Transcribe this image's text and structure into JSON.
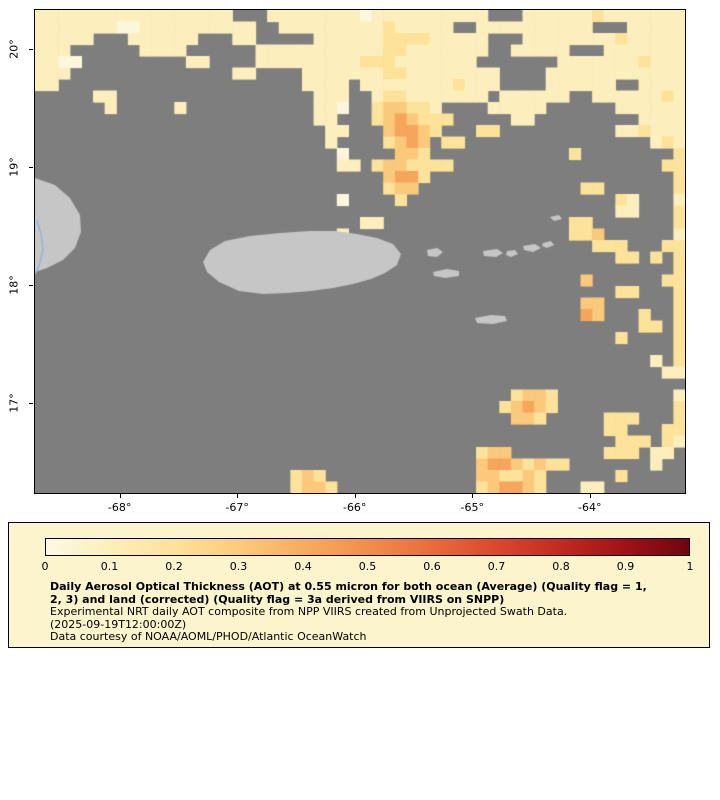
{
  "page": {
    "background": "#ffffff"
  },
  "map": {
    "background_color": "#7E7E7E",
    "land_color": "#C6C6C6",
    "border_color": "#000000",
    "coastline_color": "#8FB8D8",
    "lat_ticks": [
      {
        "value": 20,
        "label": "20°"
      },
      {
        "value": 19,
        "label": "19°"
      },
      {
        "value": 18,
        "label": "18°"
      },
      {
        "value": 17,
        "label": "17°"
      }
    ],
    "lon_ticks": [
      {
        "value": -68,
        "label": "-68°"
      },
      {
        "value": -67,
        "label": "-67°"
      },
      {
        "value": -66,
        "label": "-66°"
      },
      {
        "value": -65,
        "label": "-65°"
      },
      {
        "value": -64,
        "label": "-64°"
      }
    ],
    "coastline": [
      [
        2,
        210
      ],
      [
        6,
        224
      ],
      [
        8,
        240
      ],
      [
        4,
        256
      ],
      [
        0,
        264
      ]
    ],
    "land": [
      {
        "name": "puerto-rico",
        "points": [
          [
            168,
            252
          ],
          [
            175,
            240
          ],
          [
            190,
            231
          ],
          [
            215,
            226
          ],
          [
            245,
            223
          ],
          [
            275,
            221
          ],
          [
            300,
            221
          ],
          [
            322,
            224
          ],
          [
            342,
            228
          ],
          [
            358,
            234
          ],
          [
            366,
            244
          ],
          [
            362,
            255
          ],
          [
            350,
            263
          ],
          [
            336,
            269
          ],
          [
            318,
            274
          ],
          [
            298,
            278
          ],
          [
            276,
            281
          ],
          [
            252,
            283
          ],
          [
            228,
            284
          ],
          [
            204,
            281
          ],
          [
            184,
            272
          ],
          [
            172,
            262
          ]
        ]
      },
      {
        "name": "hispaniola-east-tip",
        "points": [
          [
            0,
            168
          ],
          [
            20,
            175
          ],
          [
            35,
            188
          ],
          [
            45,
            205
          ],
          [
            46,
            222
          ],
          [
            40,
            238
          ],
          [
            28,
            250
          ],
          [
            12,
            258
          ],
          [
            0,
            262
          ]
        ]
      },
      {
        "name": "culebra",
        "points": [
          [
            392,
            240
          ],
          [
            402,
            238
          ],
          [
            408,
            242
          ],
          [
            402,
            247
          ],
          [
            393,
            246
          ]
        ]
      },
      {
        "name": "vieques",
        "points": [
          [
            398,
            262
          ],
          [
            412,
            259
          ],
          [
            424,
            261
          ],
          [
            424,
            266
          ],
          [
            410,
            268
          ],
          [
            399,
            266
          ]
        ]
      },
      {
        "name": "st-thomas",
        "points": [
          [
            448,
            241
          ],
          [
            462,
            239
          ],
          [
            468,
            243
          ],
          [
            461,
            247
          ],
          [
            449,
            246
          ]
        ]
      },
      {
        "name": "st-john",
        "points": [
          [
            472,
            241
          ],
          [
            480,
            240
          ],
          [
            483,
            244
          ],
          [
            476,
            247
          ],
          [
            471,
            245
          ]
        ]
      },
      {
        "name": "tortola",
        "points": [
          [
            488,
            236
          ],
          [
            500,
            234
          ],
          [
            506,
            238
          ],
          [
            498,
            242
          ],
          [
            489,
            240
          ]
        ]
      },
      {
        "name": "virgin-gorda",
        "points": [
          [
            508,
            233
          ],
          [
            516,
            231
          ],
          [
            519,
            235
          ],
          [
            512,
            238
          ],
          [
            507,
            236
          ]
        ]
      },
      {
        "name": "anegada",
        "points": [
          [
            515,
            207
          ],
          [
            524,
            205
          ],
          [
            527,
            209
          ],
          [
            519,
            211
          ]
        ]
      },
      {
        "name": "st-croix",
        "points": [
          [
            440,
            308
          ],
          [
            456,
            305
          ],
          [
            470,
            306
          ],
          [
            472,
            311
          ],
          [
            458,
            314
          ],
          [
            442,
            313
          ]
        ]
      }
    ]
  },
  "chart_data": {
    "type": "heatmap",
    "title": "Daily Aerosol Optical Thickness (AOT) at 0.55 micron",
    "lon_range": [
      -68.72,
      -63.19
    ],
    "lat_range": [
      16.24,
      20.33
    ],
    "lon_tick_values": [
      -68,
      -67,
      -66,
      -65,
      -64
    ],
    "lat_tick_values": [
      20,
      19,
      18,
      17
    ],
    "no_data": "gray pixels = no data / cloud",
    "palette": {
      "a": "#FCF6DC",
      "b": "#FDEFBD",
      "c": "#FDE29A",
      "d": "#FBC97B",
      "e": "#F6A55C",
      "f": "#EF8243"
    },
    "palette_aot_values": {
      "a": 0.03,
      "b": 0.08,
      "c": 0.15,
      "d": 0.25,
      "e": 0.35,
      "f": 0.45
    },
    "grid_cols": 56,
    "grid_rows": [
      "bbbbbbbbbbbbbbbbb...bbbbbbbbabbbbbbbbbb...bbbbbbcbbbbbbb",
      "bbbbbbbaabbbbbbbbbb..bbbbbbbbbcbbbbb..bbbbbbbbbb...bbbbb",
      "bbbbb...bbbbbb...bb.....bbbbbbccccbbbbb...bbbbbbbbcbbbbb",
      "bbb......bbbb......bbbbbbbbbbbccbbbbbbb..bbbbb...bbbbbbb",
      "bbaa.........bb....bbbbbbbbbcccbbbbbbb.......bbbbbbbcbbb",
      "bbb..............bb....bbbbbbbccbbbbbbbb....bbbbbbbbbbbb",
      "bb.....................bbbb.bbbbbbbbcbbb....bbbbbb..bbbb",
      ".....bb.................bbb..bccbbbbbbb.bbbbbb..bbbbbbcb",
      "......b.....b...........bba..cddccb....bbbbb......bbbbbb",
      "........................bb...cdedccc.....bb.........bbbb",
      ".........................bb...deedc...cc..........bbcbbb",
      ".........................b....cded.cc................bcb",
      "..........................a....ddc............c........c",
      "..........................bb.cddcccc..................cc",
      "..............................deec.....................c",
      "..............................cdd..............cc......c",
      "..........................a....c..................cb...b",
      "..................................................bb...c",
      "............................bb................cc.......c",
      "..........................b...................ccd......b",
      "................................................ccc...cc",
      "..................................................cc.c.c",
      ".......................................................c",
      "...............................................d......cc",
      "..................................................cc...c",
      "...............................................dd......c",
      "...............................................ed...c..c",
      "....................................................cc.c",
      "..................................................c....c",
      ".......................................................c",
      ".....................................................b.c",
      "......................................................bb",
      "........................................................",
      ".........................................cddc..........b",
      "........................................cdedc..........c",
      ".........................................ddc.....ccc...c",
      ".................................................cc...cc",
      "..................................................ccc.cb",
      "......................................cdd........ccc.bb.",
      "......................................deedcdcc.......b..",
      "......................cdc.............ddccdc......c.....",
      "......................cddc............cdeedc...bb......."
    ],
    "colorbar": {
      "min": 0,
      "max": 1,
      "tick_labels": [
        "0",
        "0.1",
        "0.2",
        "0.3",
        "0.4",
        "0.5",
        "0.6",
        "0.7",
        "0.8",
        "0.9",
        "1"
      ],
      "stops": [
        {
          "p": 0.0,
          "color": "#FDF9E3"
        },
        {
          "p": 0.1,
          "color": "#FCEFBA"
        },
        {
          "p": 0.2,
          "color": "#FCE29A"
        },
        {
          "p": 0.3,
          "color": "#FBCB7B"
        },
        {
          "p": 0.4,
          "color": "#F8AC5F"
        },
        {
          "p": 0.5,
          "color": "#F28E4C"
        },
        {
          "p": 0.6,
          "color": "#E96C3B"
        },
        {
          "p": 0.7,
          "color": "#DB482D"
        },
        {
          "p": 0.8,
          "color": "#C32A20"
        },
        {
          "p": 0.9,
          "color": "#A01117"
        },
        {
          "p": 1.0,
          "color": "#70060E"
        }
      ]
    }
  },
  "legend": {
    "background": "#FCF4CD",
    "line1": "Daily Aerosol Optical Thickness (AOT) at 0.55 micron for both ocean (Average) (Quality flag = 1,",
    "line2": "2, 3) and land (corrected) (Quality flag = 3a derived from VIIRS on SNPP)",
    "line3": "Experimental NRT daily AOT composite from NPP VIIRS created from Unprojected Swath Data.",
    "line4": "(2025-09-19T12:00:00Z)",
    "line5": "Data courtesy of NOAA/AOML/PHOD/Atlantic OceanWatch"
  }
}
